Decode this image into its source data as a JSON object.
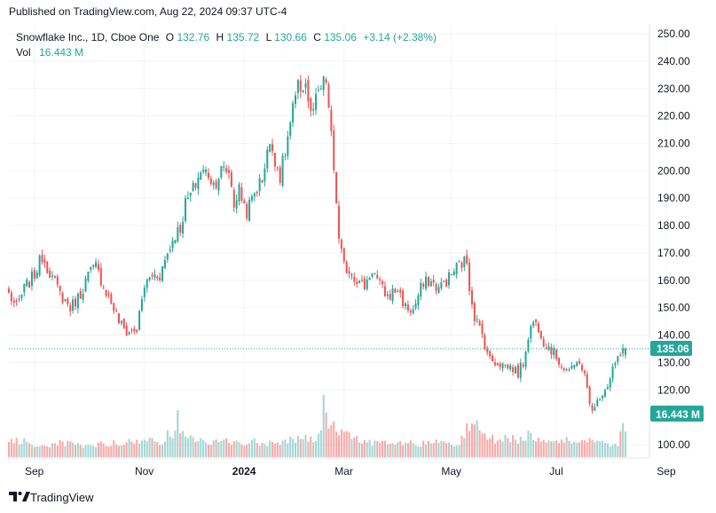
{
  "header": {
    "published_text": "Published on TradingView.com, Aug 22, 2024 09:37 UTC-4"
  },
  "legend": {
    "symbol_text": "Snowflake Inc., 1D, Cboe One",
    "o_label": "O",
    "o_value": "132.76",
    "h_label": "H",
    "h_value": "135.72",
    "l_label": "L",
    "l_value": "130.66",
    "c_label": "C",
    "c_value": "135.06",
    "change_text": "+3.14 (+2.38%)",
    "vol_label": "Vol",
    "vol_value": "16.443 M"
  },
  "footer": {
    "brand": "TradingView"
  },
  "colors": {
    "up": "#26a69a",
    "down": "#ef5350",
    "up_vol": "#a5d6d2",
    "down_vol": "#f7a9a7",
    "grid": "#f0f3fa",
    "text": "#131722",
    "axis_text": "#131722",
    "badge_bg": "#26a69a",
    "badge_text": "#ffffff"
  },
  "chart_data": {
    "type": "candlestick",
    "title": "Snowflake Inc., 1D, Cboe One",
    "ylim": [
      95,
      255
    ],
    "price_ticks": [
      "250.00",
      "240.00",
      "230.00",
      "220.00",
      "210.00",
      "200.00",
      "190.00",
      "180.00",
      "170.00",
      "160.00",
      "150.00",
      "140.00",
      "130.00",
      "120.00",
      "100.00"
    ],
    "price_tick_values": [
      250,
      240,
      230,
      220,
      210,
      200,
      190,
      180,
      170,
      160,
      150,
      140,
      130,
      120,
      100
    ],
    "x_ticks": [
      {
        "label": "Sep",
        "index": 3,
        "bold": false
      },
      {
        "label": "Nov",
        "index": 46,
        "bold": false
      },
      {
        "label": "2024",
        "index": 85,
        "bold": true
      },
      {
        "label": "Mar",
        "index": 124,
        "bold": false
      },
      {
        "label": "May",
        "index": 166,
        "bold": false
      },
      {
        "label": "Jul",
        "index": 207,
        "bold": false
      },
      {
        "label": "Sep",
        "index": 250,
        "bold": false
      }
    ],
    "last_price": 135.06,
    "last_price_label": "135.06",
    "last_volume_label": "16.443 M",
    "volume_max": 40,
    "knots": [
      [
        0,
        155
      ],
      [
        3,
        150
      ],
      [
        6,
        157
      ],
      [
        10,
        162
      ],
      [
        13,
        169
      ],
      [
        16,
        163
      ],
      [
        20,
        155
      ],
      [
        24,
        150
      ],
      [
        28,
        155
      ],
      [
        31,
        162
      ],
      [
        34,
        165
      ],
      [
        37,
        158
      ],
      [
        40,
        152
      ],
      [
        43,
        145
      ],
      [
        46,
        141
      ],
      [
        50,
        142
      ],
      [
        53,
        158
      ],
      [
        56,
        162
      ],
      [
        59,
        162
      ],
      [
        62,
        170
      ],
      [
        65,
        177
      ],
      [
        67,
        179
      ],
      [
        69,
        188
      ],
      [
        72,
        193
      ],
      [
        75,
        200
      ],
      [
        78,
        199
      ],
      [
        80,
        195
      ],
      [
        83,
        200
      ],
      [
        86,
        200
      ],
      [
        88,
        188
      ],
      [
        90,
        193
      ],
      [
        93,
        185
      ],
      [
        96,
        192
      ],
      [
        99,
        197
      ],
      [
        101,
        208
      ],
      [
        103,
        208
      ],
      [
        106,
        198
      ],
      [
        108,
        207
      ],
      [
        111,
        222
      ],
      [
        113,
        230
      ],
      [
        116,
        232
      ],
      [
        118,
        220
      ],
      [
        120,
        225
      ],
      [
        122,
        230
      ],
      [
        124,
        233
      ],
      [
        126,
        212
      ],
      [
        128,
        189
      ],
      [
        129,
        174
      ],
      [
        131,
        165
      ],
      [
        134,
        163
      ],
      [
        137,
        159
      ],
      [
        139,
        158
      ],
      [
        142,
        164
      ],
      [
        145,
        158
      ],
      [
        148,
        154
      ],
      [
        152,
        157
      ],
      [
        155,
        150
      ],
      [
        158,
        149
      ],
      [
        161,
        157
      ],
      [
        164,
        160
      ],
      [
        168,
        157
      ],
      [
        172,
        161
      ],
      [
        176,
        166
      ],
      [
        179,
        167
      ],
      [
        180,
        158
      ],
      [
        182,
        147
      ],
      [
        185,
        140
      ],
      [
        188,
        131
      ],
      [
        191,
        130
      ],
      [
        194,
        129
      ],
      [
        197,
        128
      ],
      [
        199,
        126
      ],
      [
        201,
        130
      ],
      [
        203,
        140
      ],
      [
        205,
        145
      ],
      [
        207,
        143
      ],
      [
        209,
        138
      ],
      [
        211,
        136
      ],
      [
        214,
        132
      ],
      [
        217,
        128
      ],
      [
        220,
        127
      ],
      [
        223,
        131
      ],
      [
        225,
        125
      ],
      [
        227,
        115
      ],
      [
        229,
        113
      ],
      [
        231,
        118
      ],
      [
        234,
        122
      ],
      [
        236,
        128
      ],
      [
        238,
        131
      ],
      [
        241,
        135.06
      ]
    ],
    "volume_knots": [
      [
        0,
        9
      ],
      [
        5,
        11
      ],
      [
        10,
        8
      ],
      [
        15,
        7
      ],
      [
        20,
        9
      ],
      [
        25,
        8
      ],
      [
        30,
        7
      ],
      [
        35,
        8
      ],
      [
        40,
        9
      ],
      [
        45,
        10
      ],
      [
        50,
        9
      ],
      [
        55,
        11
      ],
      [
        60,
        10
      ],
      [
        62,
        14
      ],
      [
        64,
        11
      ],
      [
        66,
        25
      ],
      [
        67,
        18
      ],
      [
        70,
        13
      ],
      [
        75,
        11
      ],
      [
        80,
        9
      ],
      [
        85,
        10
      ],
      [
        90,
        9
      ],
      [
        95,
        10
      ],
      [
        100,
        9
      ],
      [
        105,
        10
      ],
      [
        110,
        11
      ],
      [
        115,
        12
      ],
      [
        120,
        11
      ],
      [
        121,
        18
      ],
      [
        122,
        15
      ],
      [
        123,
        40
      ],
      [
        124,
        24
      ],
      [
        126,
        22
      ],
      [
        128,
        18
      ],
      [
        130,
        15
      ],
      [
        135,
        12
      ],
      [
        140,
        10
      ],
      [
        145,
        9
      ],
      [
        150,
        8
      ],
      [
        155,
        9
      ],
      [
        160,
        8
      ],
      [
        165,
        9
      ],
      [
        170,
        10
      ],
      [
        175,
        9
      ],
      [
        178,
        12
      ],
      [
        179,
        22
      ],
      [
        181,
        19
      ],
      [
        183,
        20
      ],
      [
        185,
        14
      ],
      [
        190,
        11
      ],
      [
        195,
        12
      ],
      [
        200,
        11
      ],
      [
        203,
        15
      ],
      [
        205,
        13
      ],
      [
        210,
        11
      ],
      [
        215,
        10
      ],
      [
        220,
        11
      ],
      [
        224,
        11
      ],
      [
        226,
        10
      ],
      [
        228,
        12
      ],
      [
        229,
        8
      ],
      [
        231,
        9
      ],
      [
        234,
        9
      ],
      [
        236,
        9
      ],
      [
        238,
        9
      ],
      [
        240,
        19
      ],
      [
        241,
        17
      ]
    ]
  }
}
